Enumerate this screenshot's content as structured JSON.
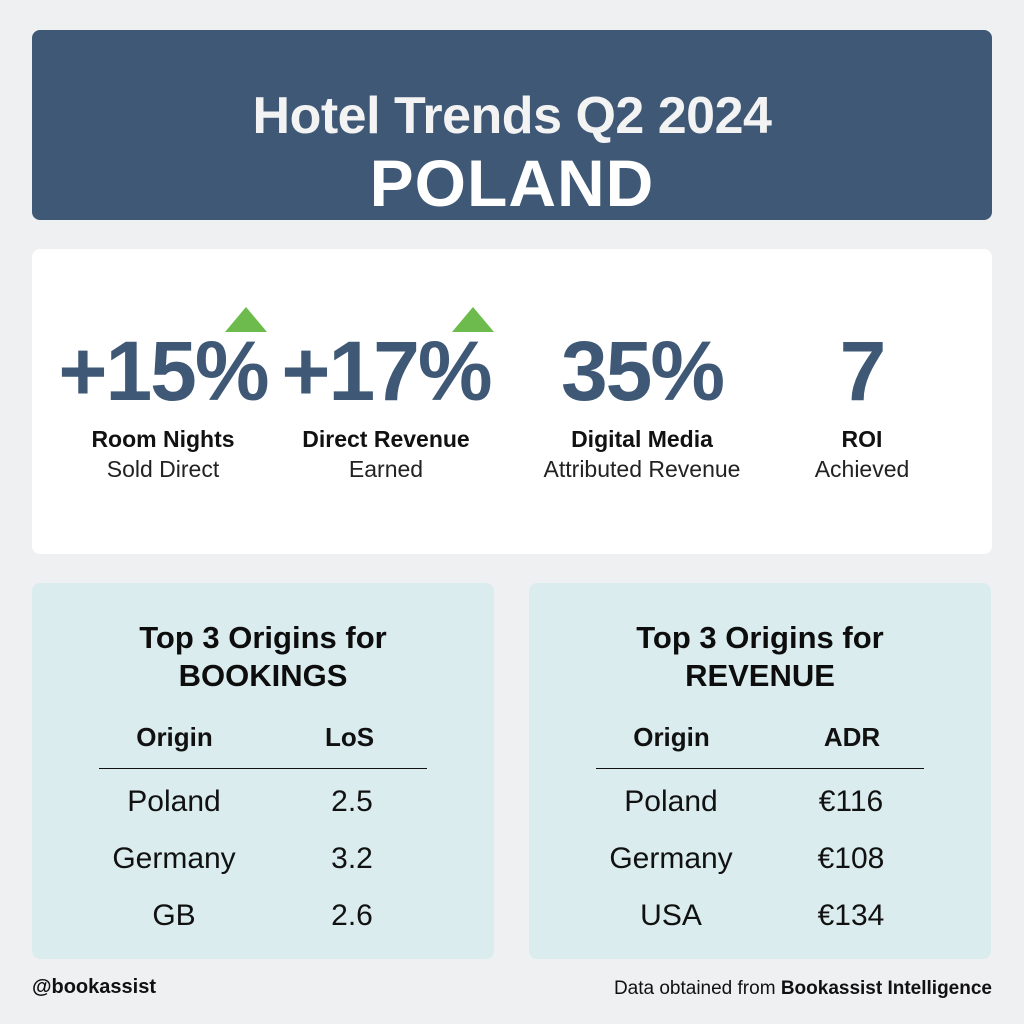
{
  "header": {
    "title": "Hotel Trends Q2 2024",
    "country": "POLAND"
  },
  "stats": [
    {
      "value": "+15%",
      "label": "Room Nights",
      "sub": "Sold Direct",
      "trend": "up"
    },
    {
      "value": "+17%",
      "label": "Direct Revenue",
      "sub": "Earned",
      "trend": "up"
    },
    {
      "value": "35%",
      "label": "Digital Media",
      "sub": "Attributed Revenue",
      "trend": "none"
    },
    {
      "value": "7",
      "label": "ROI",
      "sub": "Achieved",
      "trend": "none"
    }
  ],
  "bookings": {
    "title_line1": "Top 3 Origins for",
    "title_line2": "BOOKINGS",
    "headers": [
      "Origin",
      "LoS"
    ],
    "rows": [
      [
        "Poland",
        "2.5"
      ],
      [
        "Germany",
        "3.2"
      ],
      [
        "GB",
        "2.6"
      ]
    ]
  },
  "revenue": {
    "title_line1": "Top 3 Origins for",
    "title_line2": "REVENUE",
    "headers": [
      "Origin",
      "ADR"
    ],
    "rows": [
      [
        "Poland",
        "€116"
      ],
      [
        "Germany",
        "€108"
      ],
      [
        "USA",
        "€134"
      ]
    ]
  },
  "footer": {
    "handle": "@bookassist",
    "source_prefix": "Data obtained from ",
    "source_name": "Bookassist Intelligence"
  },
  "colors": {
    "header_bg": "#3e5876",
    "accent": "#3e5876",
    "trend_up": "#6cbb4c",
    "panel_bg": "#daecee"
  }
}
